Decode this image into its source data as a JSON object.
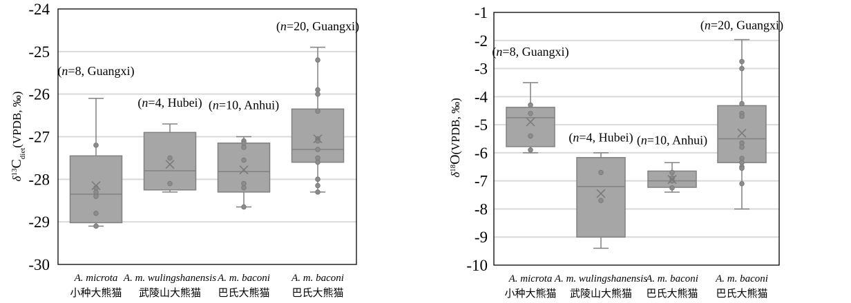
{
  "colors": {
    "box": "#a6a6a6",
    "box_edge": "#808080",
    "point": "#8c8c8c",
    "grid": "#d9d9d9"
  },
  "chart_data": [
    {
      "type": "box",
      "ylabel": "δ13Cdiet (VPDB, ‰)",
      "ylabel_parts": {
        "delta": "δ",
        "sup": "13",
        "main": "C",
        "sub": "diet",
        "units": "(VPDB, ‰)"
      },
      "ylim": [
        -30,
        -24
      ],
      "yticks": [
        -30,
        -29,
        -28,
        -27,
        -26,
        -25,
        -24
      ],
      "grid": true,
      "categories": [
        {
          "latin": "A. microta",
          "chinese": "小种大熊猫"
        },
        {
          "latin": "A. m. wulingshanensis",
          "chinese": "武陵山大熊猫"
        },
        {
          "latin": "A. m. baconi",
          "chinese": "巴氏大熊猫"
        },
        {
          "latin": "A. m. baconi",
          "chinese": "巴氏大熊猫"
        }
      ],
      "annotations": [
        {
          "n": "n",
          "rest": "=8, Guangxi)",
          "y": -25.55
        },
        {
          "n": "n",
          "rest": "=4, Hubei)",
          "y": -26.3
        },
        {
          "n": "n",
          "rest": "=10, Anhui)",
          "y": -26.35
        },
        {
          "n": "n",
          "rest": "=20, Guangxi)",
          "y": -24.5
        }
      ],
      "boxes": [
        {
          "min": -29.1,
          "q1": -29.02,
          "median": -28.35,
          "q3": -27.45,
          "max": -26.1,
          "mean": -28.15,
          "points": [
            -27.2,
            -28.2,
            -28.3,
            -28.4,
            -28.8,
            -29.1
          ]
        },
        {
          "min": -28.3,
          "q1": -28.25,
          "median": -27.8,
          "q3": -26.9,
          "max": -26.7,
          "mean": -27.65,
          "points": [
            -27.5,
            -28.1
          ]
        },
        {
          "min": -28.65,
          "q1": -28.3,
          "median": -27.82,
          "q3": -27.15,
          "max": -27.0,
          "mean": -27.78,
          "points": [
            -27.1,
            -27.15,
            -27.25,
            -27.55,
            -28.1,
            -28.2,
            -28.65
          ]
        },
        {
          "min": -28.3,
          "q1": -27.6,
          "median": -27.3,
          "q3": -26.35,
          "max": -24.9,
          "mean": -27.05,
          "points": [
            -25.2,
            -25.9,
            -26.0,
            -26.4,
            -27.05,
            -27.1,
            -27.3,
            -27.5,
            -27.6,
            -28.0,
            -28.15,
            -28.3
          ]
        }
      ]
    },
    {
      "type": "box",
      "ylabel": "δ18O (VPDB, ‰)",
      "ylabel_parts": {
        "delta": "δ",
        "sup": "18",
        "main": "O",
        "sub": "",
        "units": "(VPDB, ‰)"
      },
      "ylim": [
        -10,
        -1
      ],
      "yticks": [
        -10,
        -9,
        -8,
        -7,
        -6,
        -5,
        -4,
        -3,
        -2,
        -1
      ],
      "grid": true,
      "categories": [
        {
          "latin": "A. microta",
          "chinese": "小种大熊猫"
        },
        {
          "latin": "A. m. wulingshanensis",
          "chinese": "武陵山大熊猫"
        },
        {
          "latin": "A. m. baconi",
          "chinese": "巴氏大熊猫"
        },
        {
          "latin": "A. m. baconi",
          "chinese": "巴氏大熊猫"
        }
      ],
      "annotations": [
        {
          "n": "n",
          "rest": "=8, Guangxi)",
          "y": -2.55
        },
        {
          "n": "n",
          "rest": "=4, Hubei)",
          "y": -5.6
        },
        {
          "n": "n",
          "rest": "=10, Anhui)",
          "y": -5.7
        },
        {
          "n": "n",
          "rest": "=20, Guangxi)",
          "y": -1.6
        }
      ],
      "boxes": [
        {
          "min": -6.0,
          "q1": -5.78,
          "median": -4.75,
          "q3": -4.38,
          "max": -3.5,
          "mean": -4.9,
          "points": [
            -4.3,
            -4.6,
            -5.4,
            -5.9
          ]
        },
        {
          "min": -9.4,
          "q1": -9.0,
          "median": -7.2,
          "q3": -6.17,
          "max": -6.0,
          "mean": -7.45,
          "points": [
            -6.7,
            -7.7
          ]
        },
        {
          "min": -7.4,
          "q1": -7.23,
          "median": -7.0,
          "q3": -6.65,
          "max": -6.35,
          "mean": -6.95,
          "points": [
            -6.7,
            -6.9,
            -7.0,
            -7.25
          ]
        },
        {
          "min": -8.0,
          "q1": -6.35,
          "median": -5.5,
          "q3": -4.32,
          "max": -1.97,
          "mean": -5.3,
          "points": [
            -2.75,
            -3.0,
            -4.25,
            -4.6,
            -4.7,
            -5.65,
            -5.8,
            -6.2,
            -6.35,
            -6.5,
            -6.55,
            -7.1
          ]
        }
      ]
    }
  ]
}
